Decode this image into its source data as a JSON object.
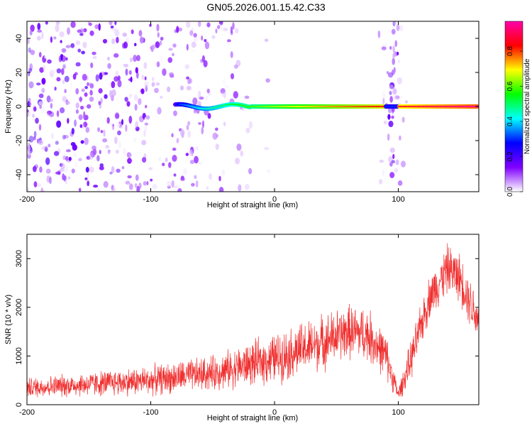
{
  "title": "GN05.2026.001.15.42.C33",
  "chart_data": [
    {
      "type": "heatmap",
      "title": "GN05.2026.001.15.42.C33",
      "xlabel": "Height of straight line (km)",
      "ylabel": "Frequency (Hz)",
      "xlim": [
        -200,
        165
      ],
      "ylim": [
        -50,
        50
      ],
      "xticks": [
        -200,
        -100,
        0,
        100
      ],
      "yticks": [
        -40,
        -20,
        0,
        20,
        40
      ],
      "colorbar": {
        "label": "Normalized spectral amplitude",
        "range": [
          0,
          0.97
        ],
        "ticks": [
          0.0,
          0.2,
          0.4,
          0.6,
          0.8
        ],
        "colormap": [
          "#ffffff",
          "#7f00ff",
          "#0000ff",
          "#00ffff",
          "#00ff00",
          "#ffff00",
          "#ff0000",
          "#ff00aa"
        ]
      },
      "features": {
        "signal_line": {
          "frequency_hz": 0,
          "x_start_km": -80,
          "x_end_km": 165,
          "amplitude_start": 0.2,
          "amplitude_end": 0.97
        },
        "noise_region": {
          "x_start_km": -200,
          "x_end_km": 0,
          "amplitude": 0.15
        },
        "interference_band": {
          "x_center_km": 95,
          "width_km": 15,
          "amplitude": 0.12
        }
      }
    },
    {
      "type": "line",
      "xlabel": "Height of straight line (km)",
      "ylabel": "SNR (10 * v/v)",
      "xlim": [
        -200,
        165
      ],
      "ylim": [
        0,
        3500
      ],
      "xticks": [
        -200,
        -100,
        0,
        100
      ],
      "yticks": [
        0,
        1000,
        2000,
        3000
      ],
      "color": "#f03030",
      "envelope": {
        "x": [
          -200,
          -150,
          -100,
          -50,
          0,
          30,
          60,
          75,
          90,
          100,
          110,
          125,
          140,
          150,
          165
        ],
        "mean": [
          350,
          420,
          500,
          650,
          950,
          1200,
          1500,
          1450,
          1000,
          200,
          900,
          2200,
          2800,
          2600,
          1700
        ],
        "spread": [
          200,
          250,
          300,
          350,
          500,
          550,
          550,
          550,
          450,
          150,
          400,
          450,
          500,
          500,
          500
        ]
      }
    }
  ]
}
